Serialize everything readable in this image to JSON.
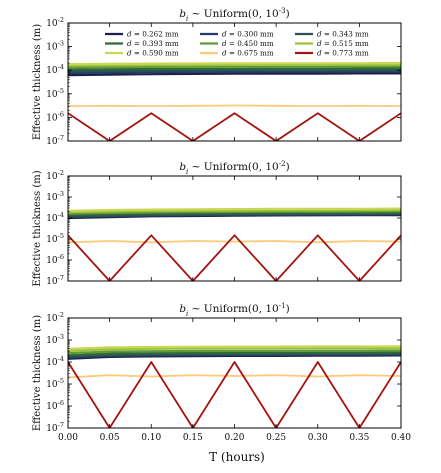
{
  "figure": {
    "x_axis_label": "T (hours)",
    "y_axis_label": "Effective thickness (m)"
  },
  "legend": [
    {
      "label": "d = 0.262 mm",
      "color": "#1b2148"
    },
    {
      "label": "d = 0.300 mm",
      "color": "#283a6e"
    },
    {
      "label": "d = 0.343 mm",
      "color": "#2c5254"
    },
    {
      "label": "d = 0.393 mm",
      "color": "#2f6b37"
    },
    {
      "label": "d = 0.450 mm",
      "color": "#5f9b3a"
    },
    {
      "label": "d = 0.515 mm",
      "color": "#9cc23c"
    },
    {
      "label": "d = 0.590 mm",
      "color": "#ccd655"
    },
    {
      "label": "d = 0.675 mm",
      "color": "#fec979"
    },
    {
      "label": "d = 0.773 mm",
      "color": "#a4130e"
    }
  ],
  "chart_data": [
    {
      "type": "line",
      "title": "b_i ~ Uniform(0, 10^-3)",
      "xlabel": "",
      "ylabel": "Effective thickness (m)",
      "xlim": [
        0.0,
        0.4
      ],
      "ylim": [
        1e-07,
        0.01
      ],
      "yscale": "log",
      "grid": false,
      "legend_position": "upper center (inside)",
      "x_ticks": [
        "0.00",
        "0.05",
        "0.10",
        "0.15",
        "0.20",
        "0.25",
        "0.30",
        "0.35",
        "0.40"
      ],
      "y_ticks": [
        "10^-7",
        "10^-6",
        "10^-5",
        "10^-4",
        "10^-3",
        "10^-2"
      ],
      "series": [
        {
          "name": "d = 0.262 mm",
          "color": "#1b2148",
          "x": [
            0.0,
            0.05,
            0.1,
            0.15,
            0.2,
            0.25,
            0.3,
            0.35,
            0.4
          ],
          "y": [
            6.2e-05,
            6.5e-05,
            6.8e-05,
            7e-05,
            7.1e-05,
            7.2e-05,
            7.2e-05,
            7.3e-05,
            7.3e-05
          ]
        },
        {
          "name": "d = 0.300 mm",
          "color": "#283a6e",
          "x": [
            0.0,
            0.05,
            0.1,
            0.15,
            0.2,
            0.25,
            0.3,
            0.35,
            0.4
          ],
          "y": [
            7.5e-05,
            7.9e-05,
            8.2e-05,
            8.4e-05,
            8.5e-05,
            8.6e-05,
            8.7e-05,
            8.7e-05,
            8.8e-05
          ]
        },
        {
          "name": "d = 0.343 mm",
          "color": "#2c5254",
          "x": [
            0.0,
            0.05,
            0.1,
            0.15,
            0.2,
            0.25,
            0.3,
            0.35,
            0.4
          ],
          "y": [
            8.8e-05,
            9.3e-05,
            9.6e-05,
            9.8e-05,
            0.0001,
            0.0001,
            0.0001,
            0.0001,
            0.0001
          ]
        },
        {
          "name": "d = 0.393 mm",
          "color": "#2f6b37",
          "x": [
            0.0,
            0.05,
            0.1,
            0.15,
            0.2,
            0.25,
            0.3,
            0.35,
            0.4
          ],
          "y": [
            0.000105,
            0.00011,
            0.000112,
            0.000114,
            0.000115,
            0.000116,
            0.000116,
            0.000117,
            0.000117
          ]
        },
        {
          "name": "d = 0.450 mm",
          "color": "#5f9b3a",
          "x": [
            0.0,
            0.05,
            0.1,
            0.15,
            0.2,
            0.25,
            0.3,
            0.35,
            0.4
          ],
          "y": [
            0.00013,
            0.000135,
            0.000138,
            0.00014,
            0.000142,
            0.000143,
            0.000144,
            0.000144,
            0.000145
          ]
        },
        {
          "name": "d = 0.515 mm",
          "color": "#9cc23c",
          "x": [
            0.0,
            0.05,
            0.1,
            0.15,
            0.2,
            0.25,
            0.3,
            0.35,
            0.4
          ],
          "y": [
            0.000155,
            0.00016,
            0.000163,
            0.000165,
            0.000167,
            0.000168,
            0.000168,
            0.000169,
            0.00017
          ]
        },
        {
          "name": "d = 0.590 mm",
          "color": "#ccd655",
          "x": [
            0.0,
            0.05,
            0.1,
            0.15,
            0.2,
            0.25,
            0.3,
            0.35,
            0.4
          ],
          "y": [
            0.00018,
            0.000185,
            0.00019,
            0.000192,
            0.000195,
            0.000196,
            0.000197,
            0.000198,
            0.0002
          ]
        },
        {
          "name": "d = 0.675 mm",
          "color": "#fec979",
          "x": [
            0.0,
            0.05,
            0.1,
            0.15,
            0.2,
            0.25,
            0.3,
            0.35,
            0.4
          ],
          "y": [
            3e-06,
            3.1e-06,
            3e-06,
            3.1e-06,
            3.2e-06,
            3.1e-06,
            3e-06,
            3.1e-06,
            3e-06
          ]
        },
        {
          "name": "d = 0.773 mm",
          "color": "#a4130e",
          "x": [
            0.0,
            0.05,
            0.1,
            0.15,
            0.2,
            0.25,
            0.3,
            0.35,
            0.4
          ],
          "y": [
            1.5e-06,
            1e-07,
            1.5e-06,
            1e-07,
            1.5e-06,
            1e-07,
            1.5e-06,
            1e-07,
            1.5e-06
          ]
        }
      ]
    },
    {
      "type": "line",
      "title": "b_i ~ Uniform(0, 10^-2)",
      "xlabel": "",
      "ylabel": "Effective thickness (m)",
      "xlim": [
        0.0,
        0.4
      ],
      "ylim": [
        1e-07,
        0.01
      ],
      "yscale": "log",
      "grid": false,
      "x_ticks": [
        "0.00",
        "0.05",
        "0.10",
        "0.15",
        "0.20",
        "0.25",
        "0.30",
        "0.35",
        "0.40"
      ],
      "y_ticks": [
        "10^-7",
        "10^-6",
        "10^-5",
        "10^-4",
        "10^-3",
        "10^-2"
      ],
      "series": [
        {
          "name": "d = 0.262 mm",
          "color": "#1b2148",
          "x": [
            0.0,
            0.05,
            0.1,
            0.15,
            0.2,
            0.25,
            0.3,
            0.35,
            0.4
          ],
          "y": [
            0.0001,
            0.00011,
            0.00012,
            0.000125,
            0.00013,
            0.000133,
            0.000135,
            0.000137,
            0.000138
          ]
        },
        {
          "name": "d = 0.300 mm",
          "color": "#283a6e",
          "x": [
            0.0,
            0.05,
            0.1,
            0.15,
            0.2,
            0.25,
            0.3,
            0.35,
            0.4
          ],
          "y": [
            0.00011,
            0.00012,
            0.00013,
            0.000135,
            0.00014,
            0.000143,
            0.000145,
            0.000147,
            0.00015
          ]
        },
        {
          "name": "d = 0.343 mm",
          "color": "#2c5254",
          "x": [
            0.0,
            0.05,
            0.1,
            0.15,
            0.2,
            0.25,
            0.3,
            0.35,
            0.4
          ],
          "y": [
            0.00012,
            0.00013,
            0.00014,
            0.000145,
            0.00015,
            0.000153,
            0.000155,
            0.000157,
            0.00016
          ]
        },
        {
          "name": "d = 0.393 mm",
          "color": "#2f6b37",
          "x": [
            0.0,
            0.05,
            0.1,
            0.15,
            0.2,
            0.25,
            0.3,
            0.35,
            0.4
          ],
          "y": [
            0.00014,
            0.00015,
            0.00016,
            0.000165,
            0.00017,
            0.000173,
            0.000175,
            0.000178,
            0.00018
          ]
        },
        {
          "name": "d = 0.450 mm",
          "color": "#5f9b3a",
          "x": [
            0.0,
            0.05,
            0.1,
            0.15,
            0.2,
            0.25,
            0.3,
            0.35,
            0.4
          ],
          "y": [
            0.00016,
            0.000175,
            0.000185,
            0.00019,
            0.000195,
            0.0002,
            0.0002,
            0.000205,
            0.00021
          ]
        },
        {
          "name": "d = 0.515 mm",
          "color": "#9cc23c",
          "x": [
            0.0,
            0.05,
            0.1,
            0.15,
            0.2,
            0.25,
            0.3,
            0.35,
            0.4
          ],
          "y": [
            0.00019,
            0.000205,
            0.000215,
            0.00022,
            0.000225,
            0.00023,
            0.00023,
            0.000235,
            0.00024
          ]
        },
        {
          "name": "d = 0.590 mm",
          "color": "#ccd655",
          "x": [
            0.0,
            0.05,
            0.1,
            0.15,
            0.2,
            0.25,
            0.3,
            0.35,
            0.4
          ],
          "y": [
            0.00022,
            0.00024,
            0.00025,
            0.00026,
            0.000265,
            0.00027,
            0.00027,
            0.000275,
            0.00028
          ]
        },
        {
          "name": "d = 0.675 mm",
          "color": "#fec979",
          "x": [
            0.0,
            0.05,
            0.1,
            0.15,
            0.2,
            0.25,
            0.3,
            0.35,
            0.4
          ],
          "y": [
            7e-06,
            8e-06,
            7e-06,
            8e-06,
            7.5e-06,
            8e-06,
            7e-06,
            8e-06,
            7.5e-06
          ]
        },
        {
          "name": "d = 0.773 mm",
          "color": "#a4130e",
          "x": [
            0.0,
            0.05,
            0.1,
            0.15,
            0.2,
            0.25,
            0.3,
            0.35,
            0.4
          ],
          "y": [
            1.5e-05,
            1e-07,
            1.5e-05,
            1e-07,
            1.5e-05,
            1e-07,
            1.5e-05,
            1e-07,
            1.5e-05
          ]
        }
      ]
    },
    {
      "type": "line",
      "title": "b_i ~ Uniform(0, 10^-1)",
      "xlabel": "T (hours)",
      "ylabel": "Effective thickness (m)",
      "xlim": [
        0.0,
        0.4
      ],
      "ylim": [
        1e-07,
        0.01
      ],
      "yscale": "log",
      "grid": false,
      "x_ticks": [
        "0.00",
        "0.05",
        "0.10",
        "0.15",
        "0.20",
        "0.25",
        "0.30",
        "0.35",
        "0.40"
      ],
      "y_ticks": [
        "10^-7",
        "10^-6",
        "10^-5",
        "10^-4",
        "10^-3",
        "10^-2"
      ],
      "series": [
        {
          "name": "d = 0.262 mm",
          "color": "#1b2148",
          "x": [
            0.0,
            0.05,
            0.1,
            0.15,
            0.2,
            0.25,
            0.3,
            0.35,
            0.4
          ],
          "y": [
            0.00014,
            0.00017,
            0.00018,
            0.000185,
            0.00019,
            0.00019,
            0.000195,
            0.000195,
            0.0002
          ]
        },
        {
          "name": "d = 0.300 mm",
          "color": "#283a6e",
          "x": [
            0.0,
            0.05,
            0.1,
            0.15,
            0.2,
            0.25,
            0.3,
            0.35,
            0.4
          ],
          "y": [
            0.00016,
            0.00019,
            0.0002,
            0.000205,
            0.00021,
            0.00021,
            0.000215,
            0.000215,
            0.00022
          ]
        },
        {
          "name": "d = 0.343 mm",
          "color": "#2c5254",
          "x": [
            0.0,
            0.05,
            0.1,
            0.15,
            0.2,
            0.25,
            0.3,
            0.35,
            0.4
          ],
          "y": [
            0.00018,
            0.00021,
            0.00022,
            0.000225,
            0.00023,
            0.00023,
            0.000235,
            0.000235,
            0.00024
          ]
        },
        {
          "name": "d = 0.393 mm",
          "color": "#2f6b37",
          "x": [
            0.0,
            0.05,
            0.1,
            0.15,
            0.2,
            0.25,
            0.3,
            0.35,
            0.4
          ],
          "y": [
            0.0002,
            0.00024,
            0.00025,
            0.000255,
            0.00026,
            0.00026,
            0.000265,
            0.000265,
            0.00027
          ]
        },
        {
          "name": "d = 0.450 mm",
          "color": "#5f9b3a",
          "x": [
            0.0,
            0.05,
            0.1,
            0.15,
            0.2,
            0.25,
            0.3,
            0.35,
            0.4
          ],
          "y": [
            0.00025,
            0.0003,
            0.00031,
            0.000315,
            0.00032,
            0.00032,
            0.000325,
            0.000325,
            0.00033
          ]
        },
        {
          "name": "d = 0.515 mm",
          "color": "#9cc23c",
          "x": [
            0.0,
            0.05,
            0.1,
            0.15,
            0.2,
            0.25,
            0.3,
            0.35,
            0.4
          ],
          "y": [
            0.00032,
            0.00038,
            0.0004,
            0.00041,
            0.00042,
            0.00042,
            0.000425,
            0.000425,
            0.00043
          ]
        },
        {
          "name": "d = 0.590 mm",
          "color": "#ccd655",
          "x": [
            0.0,
            0.05,
            0.1,
            0.15,
            0.2,
            0.25,
            0.3,
            0.35,
            0.4
          ],
          "y": [
            0.0004,
            0.00046,
            0.00048,
            0.00049,
            0.0005,
            0.0005,
            0.000505,
            0.000505,
            0.00051
          ]
        },
        {
          "name": "d = 0.675 mm",
          "color": "#fec979",
          "x": [
            0.0,
            0.05,
            0.1,
            0.15,
            0.2,
            0.25,
            0.3,
            0.35,
            0.4
          ],
          "y": [
            2e-05,
            2.5e-05,
            2.2e-05,
            2.5e-05,
            2.3e-05,
            2.5e-05,
            2.2e-05,
            2.5e-05,
            2.3e-05
          ]
        },
        {
          "name": "d = 0.773 mm",
          "color": "#a4130e",
          "x": [
            0.0,
            0.05,
            0.1,
            0.15,
            0.2,
            0.25,
            0.3,
            0.35,
            0.4
          ],
          "y": [
            0.0001,
            1e-07,
            0.0001,
            1e-07,
            0.0001,
            1e-07,
            0.0001,
            1e-07,
            0.0001
          ]
        }
      ]
    }
  ]
}
